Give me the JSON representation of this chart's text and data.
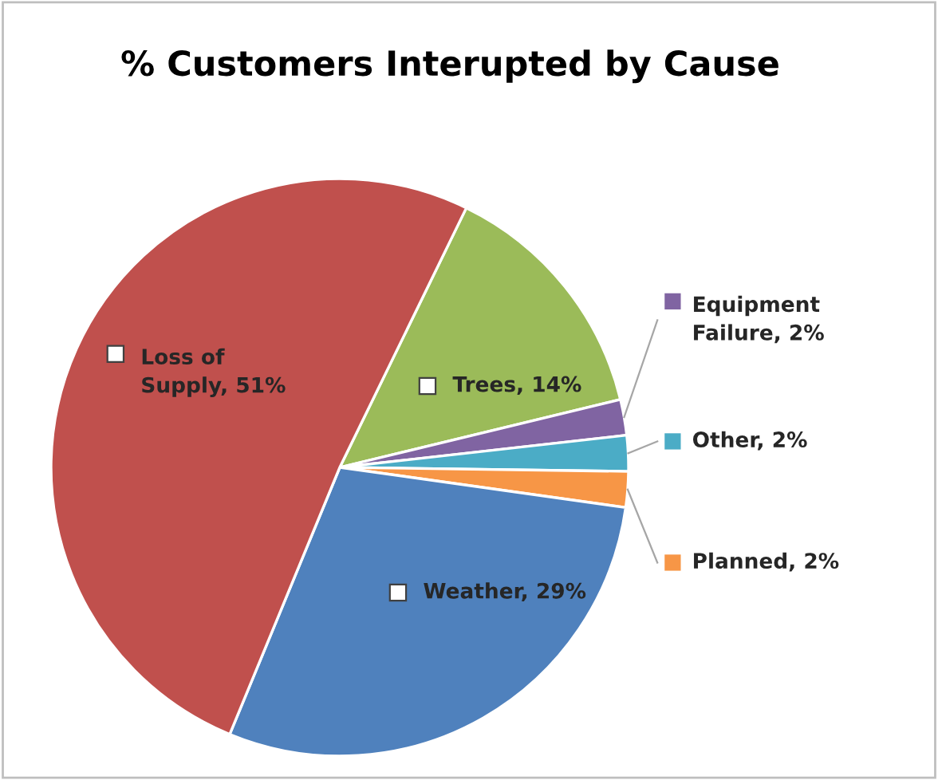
{
  "chart_data": {
    "type": "pie",
    "title": "% Customers Interupted by Cause",
    "categories": [
      "Trees",
      "Equipment Failure",
      "Other",
      "Planned",
      "Weather",
      "Loss of Supply"
    ],
    "values": [
      14,
      2,
      2,
      2,
      29,
      51
    ],
    "value_labels": [
      "14%",
      "2%",
      "2%",
      "2%",
      "29%",
      "51%"
    ],
    "legend": "right",
    "colors": [
      "#9bbb59",
      "#8064a2",
      "#4bacc6",
      "#f79646",
      "#4f81bd",
      "#c0504d"
    ]
  }
}
